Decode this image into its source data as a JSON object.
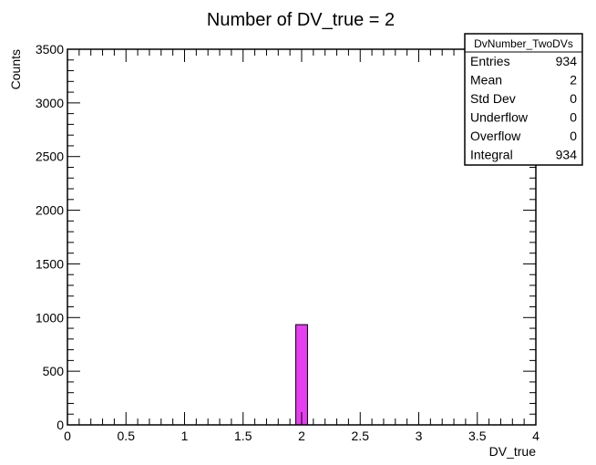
{
  "chart_data": {
    "type": "bar",
    "title": "Number of DV_true = 2",
    "xlabel": "DV_true",
    "ylabel": "Counts",
    "xlim": [
      0,
      4
    ],
    "ylim": [
      0,
      3500
    ],
    "x_ticks": [
      "0",
      "0.5",
      "1",
      "1.5",
      "2",
      "2.5",
      "3",
      "3.5",
      "4"
    ],
    "y_ticks": [
      "0",
      "500",
      "1000",
      "1500",
      "2000",
      "2500",
      "3000",
      "3500"
    ],
    "bins": [
      {
        "x_low": 1.95,
        "x_high": 2.05,
        "value": 934
      }
    ],
    "bar_color": "#e63ef0",
    "grid": false
  },
  "stats_box": {
    "title": "DvNumber_TwoDVs",
    "position": "top-right",
    "rows": [
      {
        "label": "Entries",
        "value": "934"
      },
      {
        "label": "Mean",
        "value": "2"
      },
      {
        "label": "Std Dev",
        "value": "0"
      },
      {
        "label": "Underflow",
        "value": "0"
      },
      {
        "label": "Overflow",
        "value": "0"
      },
      {
        "label": "Integral",
        "value": "934"
      }
    ]
  }
}
